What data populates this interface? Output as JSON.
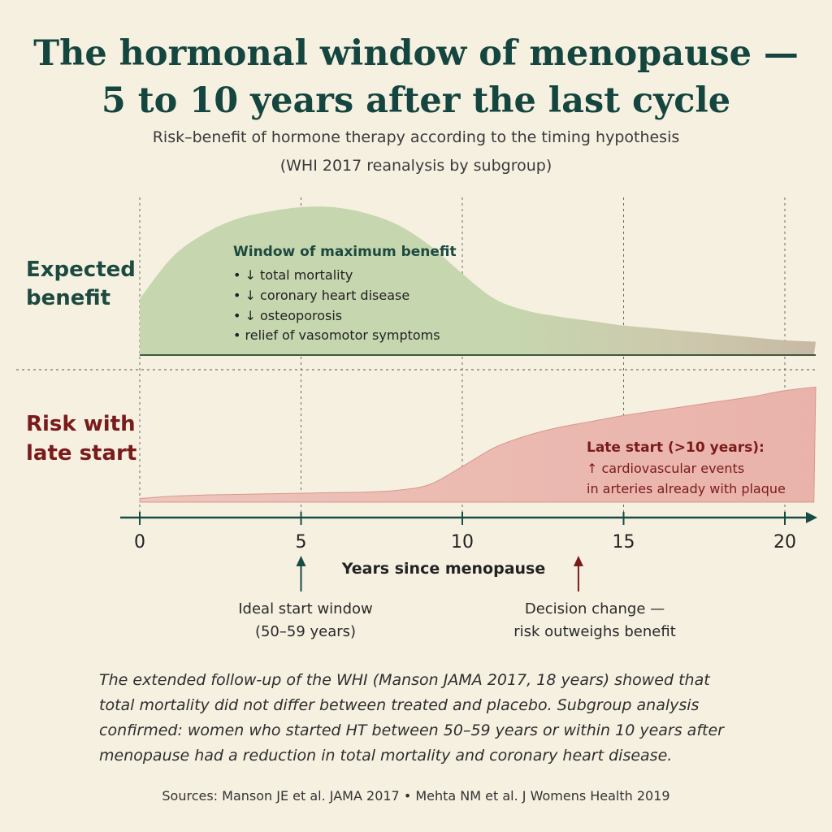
{
  "title_line1": "The hormonal window of menopause —",
  "title_line2": "5 to 10 years after the last cycle",
  "subtitle_line1": "Risk–benefit of hormone therapy according to the timing hypothesis",
  "subtitle_line2": "(WHI 2017 reanalysis by subgroup)",
  "colors": {
    "title": "#14453f",
    "benefit_fill": "#c6d6ae",
    "benefit_fill_late": "#c9bfa6",
    "benefit_label": "#1d4a40",
    "risk_fill": "#eab8b0",
    "risk_label": "#7a1b1b",
    "axis": "#174c44",
    "background": "#f6f0e1"
  },
  "chart_data": {
    "type": "area",
    "xlabel": "Years since menopause",
    "xlim": [
      0,
      21
    ],
    "x_ticks": [
      0,
      5,
      10,
      15,
      20
    ],
    "x_tick_labels": [
      "0",
      "5",
      "10",
      "15",
      "20"
    ],
    "grid": "vertical dotted lines at 0, 5, 10, 15, 20",
    "panels": [
      {
        "name": "Expected benefit",
        "label_lines": [
          "Expected benefit"
        ],
        "x": [
          0,
          1,
          2,
          3,
          4,
          5,
          6,
          7,
          8,
          9,
          10,
          11,
          12,
          13,
          14,
          15,
          16,
          17,
          18,
          19,
          20,
          21
        ],
        "values": [
          0.38,
          0.66,
          0.82,
          0.92,
          0.97,
          1.0,
          1.0,
          0.96,
          0.88,
          0.74,
          0.55,
          0.38,
          0.3,
          0.26,
          0.23,
          0.2,
          0.18,
          0.16,
          0.14,
          0.12,
          0.1,
          0.09
        ],
        "ylim": [
          0,
          1
        ],
        "annotation": {
          "heading": "Window of maximum benefit",
          "items": [
            "• ↓ total mortality",
            "• ↓ coronary heart disease",
            "• ↓ osteoporosis",
            "• relief of vasomotor symptoms"
          ]
        }
      },
      {
        "name": "Risk with late start",
        "label_lines": [
          "Risk with",
          "late start"
        ],
        "x": [
          0,
          1,
          2,
          3,
          4,
          5,
          6,
          7,
          8,
          9,
          10,
          11,
          12,
          13,
          14,
          15,
          16,
          17,
          18,
          19,
          20,
          21
        ],
        "values": [
          0.03,
          0.05,
          0.06,
          0.065,
          0.07,
          0.075,
          0.08,
          0.085,
          0.1,
          0.15,
          0.3,
          0.46,
          0.56,
          0.63,
          0.68,
          0.73,
          0.77,
          0.81,
          0.85,
          0.89,
          0.94,
          0.97
        ],
        "ylim": [
          0,
          1
        ],
        "annotation": {
          "heading": "Late start (>10 years):",
          "items": [
            "↑ cardiovascular events",
            "in arteries already with plaque"
          ]
        }
      }
    ],
    "markers": [
      {
        "x": 5,
        "label_lines": [
          "Ideal start window",
          "(50–59 years)"
        ],
        "color": "#174c44"
      },
      {
        "x": 13.6,
        "label_lines": [
          "Decision change —",
          "risk outweighs benefit"
        ],
        "color": "#7a1b1b"
      }
    ]
  },
  "footnote_text": "The extended follow-up of the WHI (Manson JAMA 2017, 18 years) showed that total mortality did not differ between treated and placebo. Subgroup analysis confirmed: women who started HT between 50–59 years or within 10 years after menopause had a reduction in total mortality and coronary heart disease.",
  "sources_text": "Sources: Manson JE et al. JAMA 2017  •  Mehta NM et al. J Womens Health 2019"
}
